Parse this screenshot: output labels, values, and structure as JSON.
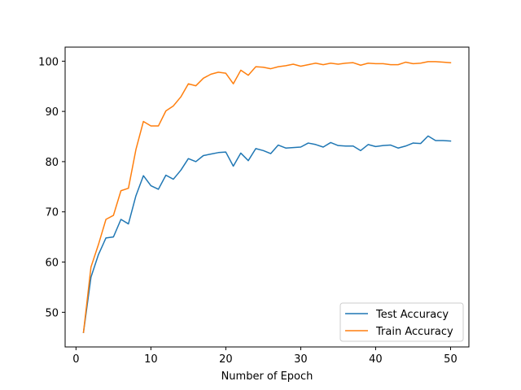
{
  "colors": {
    "test": "#1f77b4",
    "train": "#ff7f0e",
    "axes": "#000000",
    "legend_border": "#cccccc",
    "background": "#ffffff"
  },
  "chart_data": {
    "type": "line",
    "title": "",
    "xlabel": "Number of Epoch",
    "ylabel": "",
    "xlim": [
      -1.45,
      52.45
    ],
    "ylim": [
      43.1,
      102.8
    ],
    "x_ticks": [
      0,
      10,
      20,
      30,
      40,
      50
    ],
    "y_ticks": [
      50,
      60,
      70,
      80,
      90,
      100
    ],
    "grid": false,
    "legend_position": "lower right",
    "x": [
      1,
      2,
      3,
      4,
      5,
      6,
      7,
      8,
      9,
      10,
      11,
      12,
      13,
      14,
      15,
      16,
      17,
      18,
      19,
      20,
      21,
      22,
      23,
      24,
      25,
      26,
      27,
      28,
      29,
      30,
      31,
      32,
      33,
      34,
      35,
      36,
      37,
      38,
      39,
      40,
      41,
      42,
      43,
      44,
      45,
      46,
      47,
      48,
      49,
      50
    ],
    "series": [
      {
        "name": "Test Accuracy",
        "color": "#1f77b4",
        "values": [
          46.0,
          57.0,
          61.5,
          64.8,
          65.0,
          68.5,
          67.6,
          73.2,
          77.2,
          75.2,
          74.5,
          77.3,
          76.5,
          78.3,
          80.6,
          80.0,
          81.2,
          81.5,
          81.8,
          81.9,
          79.1,
          81.7,
          80.2,
          82.6,
          82.2,
          81.6,
          83.3,
          82.7,
          82.8,
          82.9,
          83.7,
          83.4,
          82.9,
          83.8,
          83.2,
          83.1,
          83.1,
          82.2,
          83.4,
          83.0,
          83.2,
          83.3,
          82.7,
          83.1,
          83.7,
          83.6,
          85.1,
          84.2,
          84.2,
          84.1
        ]
      },
      {
        "name": "Train Accuracy",
        "color": "#ff7f0e",
        "values": [
          46.0,
          59.0,
          63.5,
          68.5,
          69.3,
          74.2,
          74.7,
          82.4,
          88.0,
          87.1,
          87.1,
          90.1,
          91.1,
          92.9,
          95.5,
          95.1,
          96.6,
          97.4,
          97.8,
          97.6,
          95.5,
          98.2,
          97.2,
          98.9,
          98.8,
          98.5,
          98.9,
          99.1,
          99.4,
          99.0,
          99.3,
          99.6,
          99.3,
          99.6,
          99.4,
          99.6,
          99.7,
          99.2,
          99.6,
          99.5,
          99.5,
          99.3,
          99.3,
          99.8,
          99.5,
          99.6,
          99.9,
          99.9,
          99.8,
          99.7
        ]
      }
    ]
  }
}
